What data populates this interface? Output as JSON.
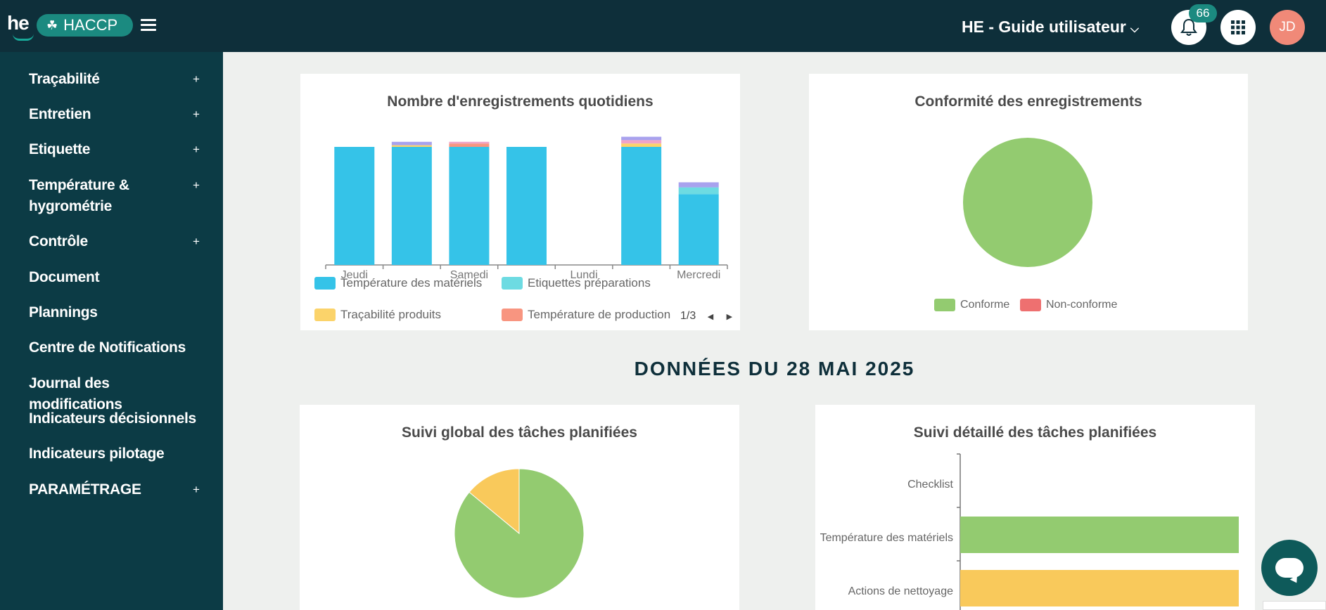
{
  "header": {
    "logo_text": "he",
    "app_badge": "HACCP",
    "org_name": "HE - Guide utilisateur",
    "notification_count": "66",
    "avatar_initials": "JD",
    "colors": {
      "bar": "#0e2f3a",
      "accent": "#1b8a80",
      "avatar": "#f08978"
    }
  },
  "sidebar": {
    "items": [
      {
        "label": "Traçabilité",
        "expandable": "+"
      },
      {
        "label": "Entretien",
        "expandable": "+"
      },
      {
        "label": "Etiquette",
        "expandable": "+"
      },
      {
        "label": "Température &",
        "label2": "hygrométrie",
        "expandable": "+"
      },
      {
        "label": "Contrôle",
        "expandable": "+"
      },
      {
        "label": "Document"
      },
      {
        "label": "Plannings"
      },
      {
        "label": "Centre de Notifications"
      },
      {
        "label": "Journal des modifications"
      },
      {
        "label": "Indicateurs décisionnels"
      },
      {
        "label": "Indicateurs pilotage"
      },
      {
        "label": "PARAMÉTRAGE",
        "expandable": "+"
      }
    ]
  },
  "section_title": "DONNÉES DU 28 MAI 2025",
  "chart_data": [
    {
      "type": "bar",
      "stacked": true,
      "title": "Nombre d'enregistrements quotidiens",
      "categories": [
        "Jeudi",
        "",
        "Samedi",
        "",
        "Lundi",
        "",
        "Mercredi"
      ],
      "series": [
        {
          "name": "Température des matériels",
          "color": "#35c3e8",
          "values": [
            35,
            35,
            35,
            35,
            0,
            35,
            21
          ]
        },
        {
          "name": "Etiquettes préparations",
          "color": "#6ddbe2",
          "values": [
            0,
            0,
            0,
            0,
            0,
            0,
            2
          ]
        },
        {
          "name": "Traçabilité produits",
          "color": "#fbd36a",
          "values": [
            0,
            0.5,
            0,
            0,
            0,
            1,
            0
          ]
        },
        {
          "name": "Température de production",
          "color": "#f89580",
          "values": [
            0,
            0,
            1,
            0,
            0,
            0,
            0
          ]
        },
        {
          "name": "",
          "color": "#f0a4c8",
          "values": [
            0,
            0,
            0.5,
            0,
            0,
            1,
            0
          ]
        },
        {
          "name": "",
          "color": "#a8a2ee",
          "values": [
            0,
            1,
            0,
            0,
            0,
            1,
            1.5
          ]
        }
      ],
      "legend_page": "1/3"
    },
    {
      "type": "pie",
      "title": "Conformité des enregistrements",
      "labels": [
        "Conforme",
        "Non-conforme"
      ],
      "values": [
        100,
        0
      ],
      "colors": [
        "#93cb70",
        "#ee7070"
      ]
    },
    {
      "type": "pie",
      "title": "Suivi global des tâches planifiées",
      "labels": [
        "",
        ""
      ],
      "values": [
        86,
        14
      ],
      "colors": [
        "#93cb70",
        "#f9c95b"
      ]
    },
    {
      "type": "bar",
      "orientation": "horizontal",
      "title": "Suivi détaillé des tâches planifiées",
      "categories": [
        "Checklist",
        "Température des matériels",
        "Actions de nettoyage"
      ],
      "values": [
        0,
        100,
        100
      ],
      "colors": [
        "#93cb70",
        "#93cb70",
        "#f9c95b"
      ]
    }
  ],
  "icons": {
    "bell": "bell-icon",
    "apps": "grid-icon",
    "menu": "hamburger-icon",
    "chat": "chat-icon",
    "leaf": "leaf-icon"
  }
}
